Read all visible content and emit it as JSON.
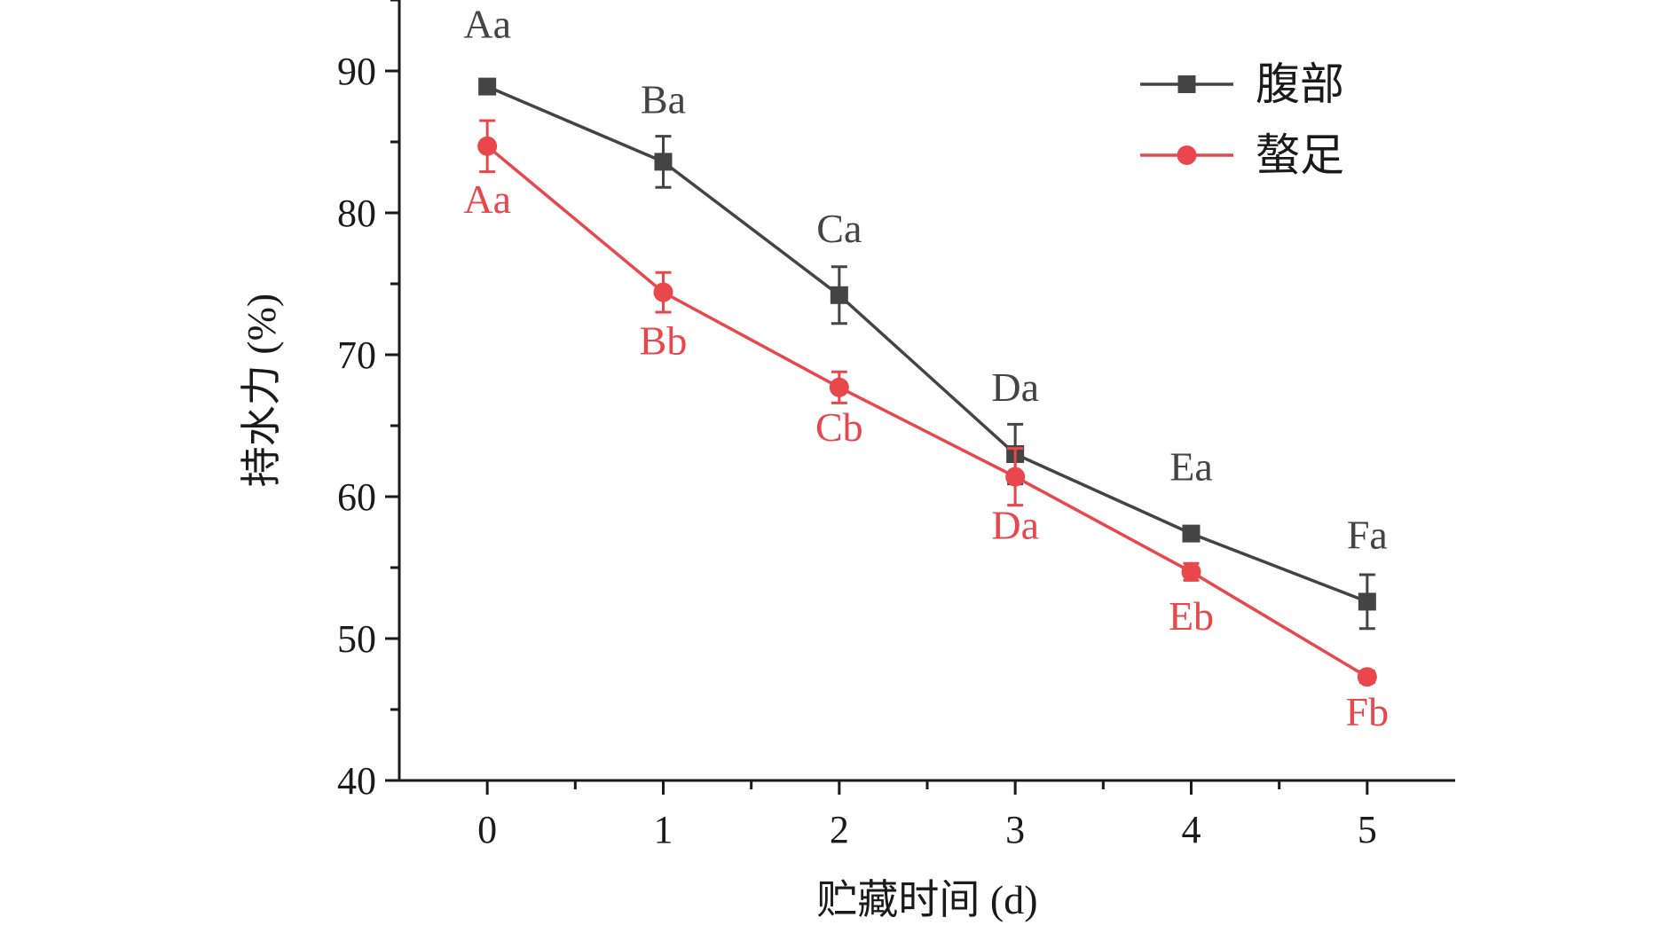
{
  "chart_data": {
    "type": "line",
    "title": "",
    "xlabel": "贮藏时间 (d)",
    "ylabel": "持水力 (%)",
    "x": [
      0,
      1,
      2,
      3,
      4,
      5
    ],
    "xlim": [
      -0.5,
      5.5
    ],
    "ylim": [
      40,
      95
    ],
    "x_ticks": [
      "0",
      "1",
      "2",
      "3",
      "4",
      "5"
    ],
    "y_ticks": [
      "40",
      "50",
      "60",
      "70",
      "80",
      "90"
    ],
    "grid": false,
    "legend_position": "top-right",
    "series": [
      {
        "name": "腹部",
        "color": "#444444",
        "marker": "square",
        "values": [
          88.9,
          83.6,
          74.2,
          63.0,
          57.4,
          52.6
        ],
        "errors": [
          0.4,
          1.8,
          2.0,
          2.1,
          0.4,
          1.9
        ],
        "labels": [
          "Aa",
          "Ba",
          "Ca",
          "Da",
          "Ea",
          "Fa"
        ]
      },
      {
        "name": "螯足",
        "color": "#e8474c",
        "marker": "circle",
        "values": [
          84.7,
          74.4,
          67.7,
          61.4,
          54.7,
          47.3
        ],
        "errors": [
          1.8,
          1.4,
          1.1,
          2.0,
          0.6,
          0.4
        ],
        "labels": [
          "Aa",
          "Bb",
          "Cb",
          "Da",
          "Eb",
          "Fb"
        ]
      }
    ]
  }
}
